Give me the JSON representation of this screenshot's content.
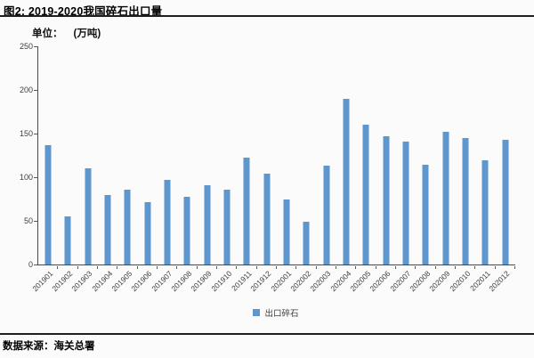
{
  "header": {
    "title": "图2: 2019-2020我国碎石出口量"
  },
  "unit": {
    "label": "单位：",
    "value": "(万吨)"
  },
  "chart_data": {
    "type": "bar",
    "title": "图2: 2019-2020我国碎石出口量",
    "unit": "万吨",
    "categories": [
      "201901",
      "201902",
      "201903",
      "201904",
      "201905",
      "201906",
      "201907",
      "201908",
      "201909",
      "201910",
      "201911",
      "201912",
      "202001",
      "202002",
      "202003",
      "202004",
      "202005",
      "202006",
      "202007",
      "202008",
      "202009",
      "202010",
      "202011",
      "202012"
    ],
    "series": [
      {
        "name": "出口碎石",
        "values": [
          137,
          55,
          110,
          80,
          86,
          71,
          97,
          78,
          91,
          86,
          122,
          104,
          74,
          49,
          113,
          190,
          160,
          147,
          141,
          114,
          152,
          145,
          119,
          143
        ]
      }
    ],
    "xlabel": "",
    "ylabel": "",
    "ylim": [
      0,
      250
    ],
    "yticks": [
      0,
      50,
      100,
      150,
      200,
      250
    ],
    "bar_color": "#5e96ce",
    "grid": false,
    "legend_position": "bottom",
    "legend": [
      "出口碎石"
    ]
  },
  "footer": {
    "source": "数据来源：海关总署"
  }
}
